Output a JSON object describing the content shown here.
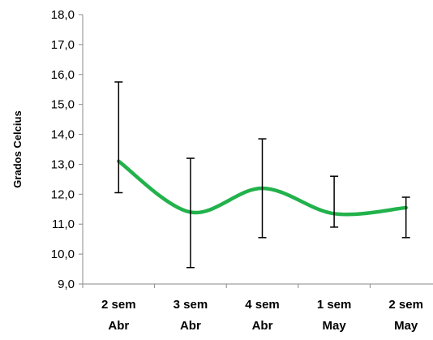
{
  "chart_data": {
    "type": "line",
    "title": "",
    "xlabel": "",
    "ylabel": "Grados Celcius",
    "ylim": [
      9.0,
      18.0
    ],
    "ytick_step": 1.0,
    "ytick_labels": [
      "9,0",
      "10,0",
      "11,0",
      "12,0",
      "13,0",
      "14,0",
      "15,0",
      "16,0",
      "17,0",
      "18,0"
    ],
    "categories": [
      [
        "2 sem",
        "Abr"
      ],
      [
        "3 sem",
        "Abr"
      ],
      [
        "4 sem",
        "Abr"
      ],
      [
        "1 sem",
        "May"
      ],
      [
        "2 sem",
        "May"
      ]
    ],
    "grid": false,
    "legend": "none",
    "line_color": "#22b24c",
    "series": [
      {
        "values": [
          13.1,
          11.4,
          12.2,
          11.35,
          11.55
        ],
        "error_upper": [
          15.75,
          13.2,
          13.85,
          12.6,
          11.9
        ],
        "error_lower": [
          12.05,
          9.55,
          10.55,
          10.9,
          10.55
        ]
      }
    ]
  }
}
